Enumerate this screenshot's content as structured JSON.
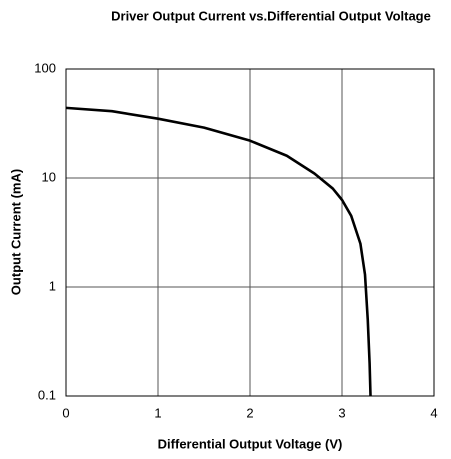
{
  "chart_data": {
    "type": "line",
    "title": "Driver Output Current vs.Differential Output Voltage",
    "x_label": "Differential Output Voltage (V)",
    "y_label": "Output Current (mA)",
    "x": [
      0,
      0.5,
      1,
      1.5,
      2,
      2.4,
      2.7,
      2.9,
      3.0,
      3.1,
      3.2,
      3.25,
      3.28,
      3.3,
      3.31
    ],
    "values": [
      44,
      41,
      35,
      29,
      22,
      16,
      11,
      8,
      6.3,
      4.5,
      2.5,
      1.3,
      0.5,
      0.2,
      0.1
    ],
    "color": "#000000",
    "xlim": [
      0,
      4
    ],
    "xticks": [
      0,
      1,
      2,
      3,
      4
    ],
    "ylim": [
      0.1,
      100
    ],
    "yticks": [
      0.1,
      1,
      10,
      100
    ],
    "yscale": "log",
    "grid": true
  }
}
